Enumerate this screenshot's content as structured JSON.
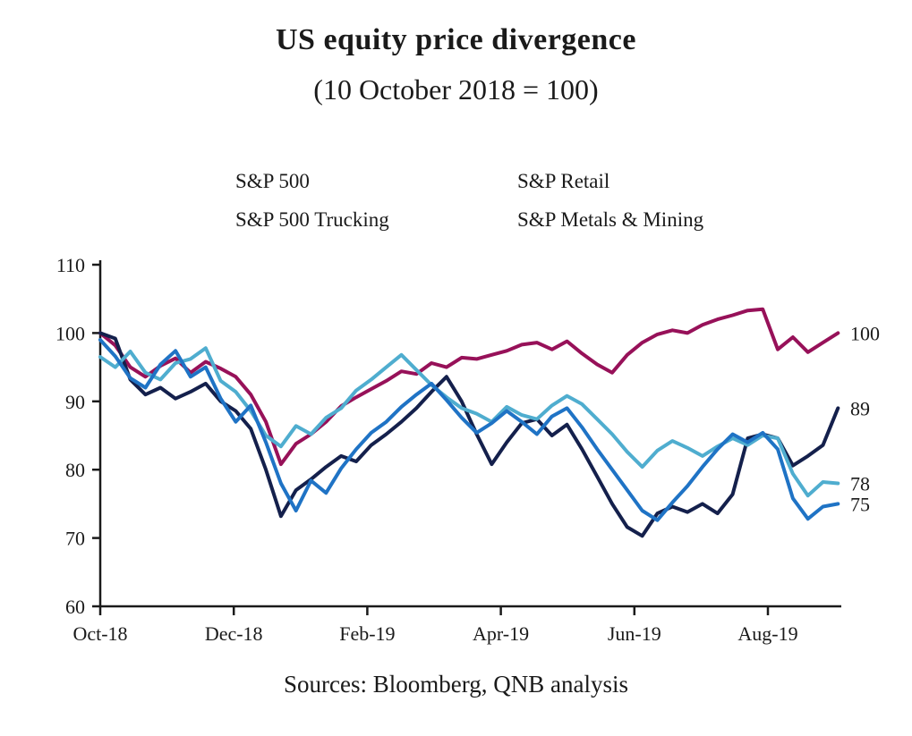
{
  "header": {
    "title": "US equity price divergence",
    "subtitle": "(10 October 2018 = 100)"
  },
  "source": "Sources: Bloomberg, QNB analysis",
  "colors": {
    "text": "#1a1a1a",
    "axis": "#1a1a1a",
    "background": "#ffffff"
  },
  "chart_data": {
    "type": "line",
    "title": "US equity price divergence",
    "subtitle": "(10 October 2018 = 100)",
    "grid": false,
    "legend_position": "top",
    "x_unit": "months since 10 October 2018",
    "x_range": [
      0,
      11.05
    ],
    "ylim": [
      60,
      110
    ],
    "y_ticks": [
      110,
      100,
      90,
      80,
      70,
      60
    ],
    "x_ticks": [
      {
        "label": "Oct-18",
        "month": 0
      },
      {
        "label": "Dec-18",
        "month": 2
      },
      {
        "label": "Feb-19",
        "month": 4
      },
      {
        "label": "Apr-19",
        "month": 6
      },
      {
        "label": "Jun-19",
        "month": 8
      },
      {
        "label": "Aug-19",
        "month": 10
      }
    ],
    "series": [
      {
        "name": "S&P 500",
        "color": "#971159",
        "end_label": "100",
        "values": [
          100,
          98.2,
          95,
          93.6,
          95.2,
          96.3,
          94.2,
          95.8,
          94.8,
          93.6,
          91,
          87,
          80.8,
          83.8,
          85.2,
          87,
          89.3,
          90.6,
          91.8,
          93,
          94.4,
          94,
          95.6,
          95,
          96.4,
          96.2,
          96.8,
          97.4,
          98.3,
          98.6,
          97.6,
          98.8,
          97,
          95.4,
          94.2,
          96.8,
          98.6,
          99.8,
          100.4,
          100,
          101.2,
          102,
          102.6,
          103.3,
          103.5,
          97.6,
          99.4,
          97.2,
          98.6,
          100
        ]
      },
      {
        "name": "S&P Retail",
        "color": "#14204C",
        "end_label": "89",
        "values": [
          100,
          99.2,
          93.2,
          91,
          92,
          90.4,
          91.4,
          92.6,
          90,
          88.6,
          86,
          80,
          73.2,
          77,
          78.6,
          80.4,
          82,
          81.2,
          83.6,
          85.2,
          87,
          89,
          91.4,
          93.6,
          90,
          85.2,
          80.8,
          84,
          86.8,
          87.4,
          85,
          86.6,
          83,
          79,
          75,
          71.6,
          70.3,
          73.6,
          74.6,
          73.8,
          75,
          73.6,
          76.4,
          84.6,
          85.2,
          84.6,
          80.6,
          82,
          83.6,
          89
        ]
      },
      {
        "name": "S&P 500 Trucking",
        "color": "#4FADCF",
        "end_label": "78",
        "values": [
          96.5,
          95,
          97.3,
          94.2,
          93.2,
          95.6,
          96.2,
          97.8,
          93,
          91.4,
          88.6,
          85,
          83.4,
          86.4,
          85.2,
          87.6,
          89,
          91.6,
          93.2,
          95,
          96.8,
          94.6,
          92.4,
          90.6,
          89,
          88.2,
          87,
          89.2,
          88,
          87.4,
          89.4,
          90.8,
          89.6,
          87.4,
          85.2,
          82.6,
          80.4,
          82.8,
          84.2,
          83.2,
          82,
          83.4,
          84.6,
          83.6,
          85,
          84.6,
          79.4,
          76.2,
          78.2,
          78
        ]
      },
      {
        "name": "S&P Metals & Mining",
        "color": "#1F73C5",
        "end_label": "75",
        "values": [
          99,
          96.6,
          93.4,
          92,
          95.4,
          97.4,
          93.6,
          95,
          90.4,
          87,
          89.4,
          84,
          78,
          74,
          78.4,
          76.6,
          80.2,
          83,
          85.4,
          87,
          89.2,
          91,
          92.6,
          90.2,
          87.6,
          85.4,
          86.8,
          88.6,
          87,
          85.2,
          87.8,
          89,
          86.2,
          83,
          80,
          77,
          74,
          72.6,
          75.2,
          77.6,
          80.4,
          83,
          85.2,
          84,
          85.4,
          83,
          75.8,
          72.8,
          74.6,
          75
        ]
      }
    ]
  }
}
